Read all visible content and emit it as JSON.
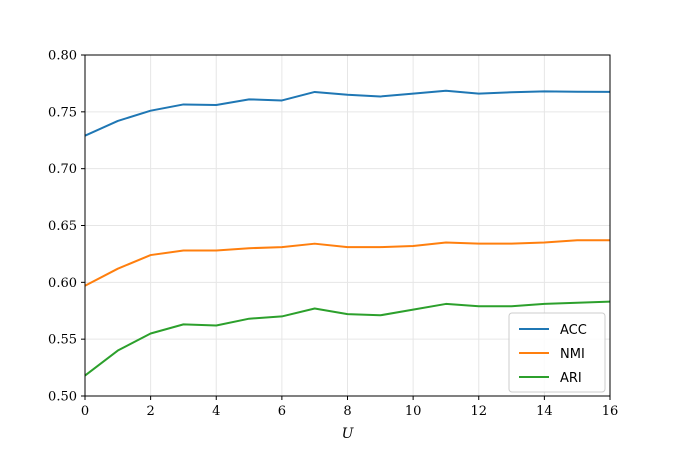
{
  "chart_data": {
    "type": "line",
    "xlabel": "U",
    "ylabel": "",
    "xlim": [
      0,
      16
    ],
    "ylim": [
      0.5,
      0.8
    ],
    "xticks": [
      "0",
      "2",
      "4",
      "6",
      "8",
      "10",
      "12",
      "14",
      "16"
    ],
    "yticks": [
      "0.50",
      "0.55",
      "0.60",
      "0.65",
      "0.70",
      "0.75",
      "0.80"
    ],
    "grid": true,
    "legend_position": "lower-right",
    "x": [
      0,
      1,
      2,
      3,
      4,
      5,
      6,
      7,
      8,
      9,
      10,
      11,
      12,
      13,
      14,
      15,
      16
    ],
    "series": [
      {
        "name": "ACC",
        "color": "#1f77b4",
        "values": [
          0.729,
          0.742,
          0.751,
          0.7565,
          0.756,
          0.761,
          0.76,
          0.7675,
          0.765,
          0.7635,
          0.766,
          0.7685,
          0.766,
          0.7672,
          0.768,
          0.7677,
          0.7676
        ]
      },
      {
        "name": "NMI",
        "color": "#ff7f0e",
        "values": [
          0.597,
          0.612,
          0.624,
          0.628,
          0.628,
          0.63,
          0.631,
          0.634,
          0.631,
          0.631,
          0.632,
          0.635,
          0.634,
          0.634,
          0.635,
          0.637,
          0.637
        ]
      },
      {
        "name": "ARI",
        "color": "#2ca02c",
        "values": [
          0.518,
          0.54,
          0.555,
          0.563,
          0.562,
          0.568,
          0.57,
          0.577,
          0.572,
          0.571,
          0.576,
          0.581,
          0.579,
          0.579,
          0.581,
          0.582,
          0.583
        ]
      }
    ]
  }
}
